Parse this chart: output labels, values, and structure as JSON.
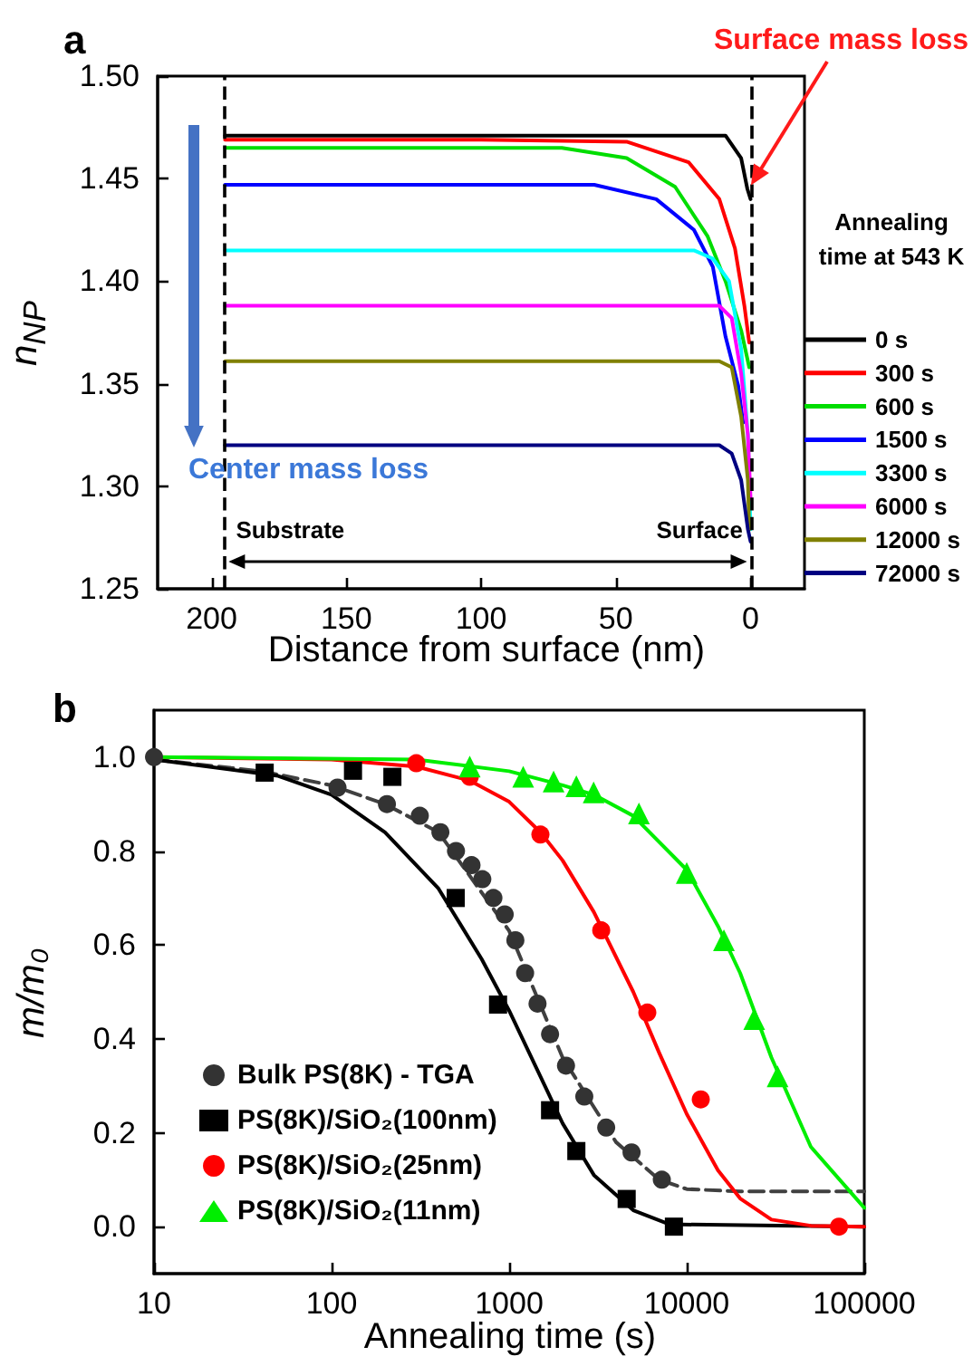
{
  "chart_data": [
    {
      "type": "line",
      "title": "a",
      "xlabel": "Distance from surface (nm)",
      "ylabel": "n$_{NP}$",
      "legend_title": "Annealing time at 543 K",
      "xlim": [
        220,
        -20
      ],
      "xticks": [
        200,
        150,
        100,
        50,
        0
      ],
      "ylim": [
        1.25,
        1.5
      ],
      "yticks": [
        {
          "value": 1.25,
          "label": "1.25"
        },
        {
          "value": 1.3,
          "label": "1.30"
        },
        {
          "value": 1.35,
          "label": "1.35"
        },
        {
          "value": 1.4,
          "label": "1.40"
        },
        {
          "value": 1.45,
          "label": "1.45"
        },
        {
          "value": 1.5,
          "label": "1.50"
        }
      ],
      "marker": "none",
      "grid": false,
      "legend": "right",
      "ref_lines": [
        {
          "axis": "x",
          "value": 195,
          "color": "#000000",
          "line_style": "dashed"
        },
        {
          "axis": "x",
          "value": 0,
          "color": "#000000",
          "line_style": "dashed"
        }
      ],
      "annotations": [
        "Surface mass loss",
        "Center mass loss",
        "Substrate",
        "Surface"
      ],
      "series": [
        {
          "name": "0 s",
          "color": "#000000",
          "x": [
            195,
            50,
            9.3,
            3.5,
            1.2,
            0
          ],
          "values": [
            1.471,
            1.471,
            1.471,
            1.46,
            1.445,
            1.44
          ]
        },
        {
          "name": "300 s",
          "color": "#ff0000",
          "x": [
            195,
            100,
            46,
            23,
            11.6,
            5.8,
            2.3,
            0.5
          ],
          "values": [
            1.469,
            1.469,
            1.468,
            1.458,
            1.44,
            1.416,
            1.388,
            1.37
          ]
        },
        {
          "name": "600 s",
          "color": "#00dd00",
          "x": [
            195,
            70,
            46,
            28,
            16,
            9.3,
            3.5,
            0.5
          ],
          "values": [
            1.465,
            1.465,
            1.46,
            1.446,
            1.422,
            1.4,
            1.376,
            1.358
          ]
        },
        {
          "name": "1500 s",
          "color": "#0000ff",
          "x": [
            195,
            58,
            35,
            21,
            14,
            9.3,
            4.6,
            2.8
          ],
          "values": [
            1.447,
            1.447,
            1.44,
            1.425,
            1.407,
            1.373,
            1.349,
            1.331
          ]
        },
        {
          "name": "3300 s",
          "color": "#00ffff",
          "x": [
            195,
            21,
            14,
            8,
            3.5,
            1,
            0
          ],
          "values": [
            1.415,
            1.415,
            1.411,
            1.4,
            1.367,
            1.325,
            1.279
          ]
        },
        {
          "name": "6000 s",
          "color": "#ff00ff",
          "x": [
            195,
            11.6,
            7,
            3.5,
            1,
            0
          ],
          "values": [
            1.388,
            1.388,
            1.382,
            1.355,
            1.325,
            1.294
          ]
        },
        {
          "name": "12000 s",
          "color": "#808000",
          "x": [
            195,
            11.6,
            7,
            3.5,
            1,
            0.5
          ],
          "values": [
            1.361,
            1.361,
            1.358,
            1.334,
            1.303,
            1.279
          ]
        },
        {
          "name": "72000 s",
          "color": "#000080",
          "x": [
            195,
            11.6,
            7,
            3.5,
            1,
            0
          ],
          "values": [
            1.32,
            1.32,
            1.316,
            1.303,
            1.279,
            1.273
          ]
        }
      ]
    },
    {
      "type": "scatter",
      "title": "b",
      "xlabel": "Annealing time (s)",
      "ylabel": "m/m₀",
      "log": "x",
      "xlim": [
        10,
        100000
      ],
      "xticks": [
        10,
        100,
        1000,
        10000,
        100000
      ],
      "ylim": [
        -0.1,
        1.1
      ],
      "yticks": [
        {
          "value": 0,
          "label": "0.0"
        },
        {
          "value": 0.2,
          "label": "0.2"
        },
        {
          "value": 0.4,
          "label": "0.4"
        },
        {
          "value": 0.6,
          "label": "0.6"
        },
        {
          "value": 0.8,
          "label": "0.8"
        },
        {
          "value": 1,
          "label": "1.0"
        }
      ],
      "grid": false,
      "legend": "bottom left",
      "series": [
        {
          "type": "line",
          "color": "#404040",
          "marker": "none",
          "line_style": "dashed",
          "x": [
            10,
            40,
            100,
            200,
            400,
            1000,
            2000,
            4000,
            7000,
            10000,
            20000,
            100000
          ],
          "values": [
            0.995,
            0.97,
            0.94,
            0.9,
            0.84,
            0.63,
            0.36,
            0.18,
            0.1,
            0.08,
            0.075,
            0.075
          ]
        },
        {
          "type": "line",
          "color": "#000000",
          "marker": "none",
          "line_style": "solid",
          "x": [
            10,
            50,
            100,
            200,
            400,
            700,
            1000,
            1500,
            2000,
            3000,
            5000,
            8000,
            100000
          ],
          "values": [
            0.995,
            0.96,
            0.92,
            0.84,
            0.72,
            0.57,
            0.46,
            0.32,
            0.22,
            0.11,
            0.035,
            0.005,
            0
          ]
        },
        {
          "type": "line",
          "color": "#ff0000",
          "marker": "none",
          "line_style": "solid",
          "x": [
            10,
            100,
            300,
            600,
            1000,
            1500,
            2000,
            3000,
            5000,
            7000,
            10000,
            15000,
            20000,
            30000,
            50000,
            100000
          ],
          "values": [
            1,
            0.995,
            0.98,
            0.95,
            0.905,
            0.84,
            0.78,
            0.67,
            0.5,
            0.37,
            0.24,
            0.12,
            0.06,
            0.015,
            0.002,
            0
          ]
        },
        {
          "type": "line",
          "color": "#00ee00",
          "marker": "none",
          "line_style": "solid",
          "x": [
            10,
            300,
            1000,
            2000,
            3000,
            5000,
            10000,
            15000,
            20000,
            30000,
            50000,
            100000
          ],
          "values": [
            1,
            0.995,
            0.97,
            0.94,
            0.92,
            0.875,
            0.76,
            0.64,
            0.54,
            0.36,
            0.17,
            0.04
          ]
        },
        {
          "name": "Bulk PS(8K) - TGA",
          "color": "#333333",
          "marker": "circle",
          "x": [
            10,
            108,
            205,
            314,
            410,
            502,
            614,
            706,
            815,
            944,
            1084,
            1230,
            1445,
            1700,
            2090,
            2650,
            3520,
            4890,
            7240
          ],
          "values": [
            1,
            0.935,
            0.9,
            0.875,
            0.84,
            0.8,
            0.77,
            0.74,
            0.7,
            0.665,
            0.61,
            0.54,
            0.475,
            0.41,
            0.343,
            0.277,
            0.211,
            0.158,
            0.1
          ]
        },
        {
          "name": "PS(8K)/SiO₂(100nm)",
          "color": "#000000",
          "marker": "square",
          "x": [
            42,
            132,
            220,
            500,
            866,
            1700,
            2390,
            4590,
            8470
          ],
          "values": [
            0.967,
            0.971,
            0.958,
            0.7,
            0.473,
            0.248,
            0.161,
            0.059,
            0
          ]
        },
        {
          "name": "PS(8K)/SiO₂(25nm)",
          "color": "#ff0000",
          "marker": "circle",
          "x": [
            300,
            600,
            1500,
            3300,
            6000,
            12000,
            72000
          ],
          "values": [
            0.987,
            0.958,
            0.835,
            0.631,
            0.456,
            0.271,
            0
          ]
        },
        {
          "name": "PS(8K)/SiO₂(11nm)",
          "color": "#00ee00",
          "marker": "triangle",
          "x": [
            600,
            1200,
            1780,
            2390,
            2990,
            5380,
            10000,
            16200,
            24000,
            32500
          ],
          "values": [
            0.98,
            0.958,
            0.948,
            0.938,
            0.925,
            0.88,
            0.753,
            0.61,
            0.442,
            0.32
          ]
        }
      ]
    }
  ]
}
